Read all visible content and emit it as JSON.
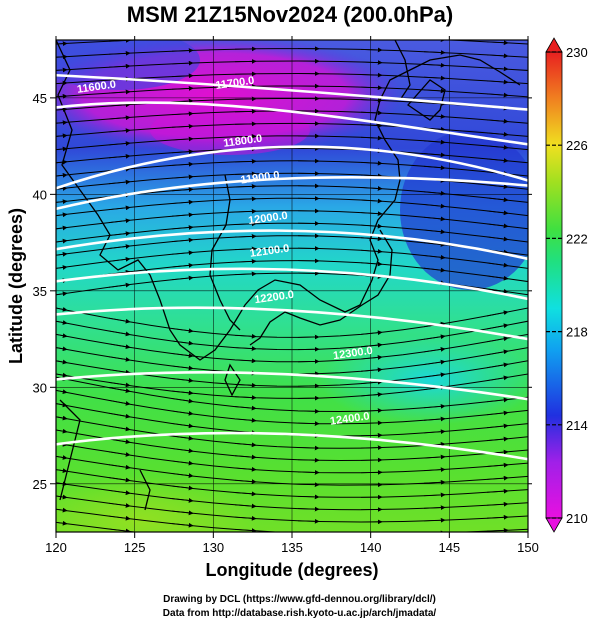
{
  "title": "MSM 21Z15Nov2024 (200.0hPa)",
  "credits": {
    "line1": "Drawing by DCL (https://www.gfd-dennou.org/library/dcl/)",
    "line2": "Data from http://database.rish.kyoto-u.ac.jp/arch/jmadata/"
  },
  "map": {
    "xlabel": "Longitude (degrees)",
    "ylabel": "Latitude  (degrees)",
    "xlim": [
      120,
      150
    ],
    "ylim": [
      22.5,
      48
    ],
    "xticks": [
      "120",
      "125",
      "130",
      "135",
      "140",
      "145",
      "150"
    ],
    "yticks": [
      "25",
      "30",
      "35",
      "40",
      "45"
    ],
    "contours": [
      {
        "label": "11600.0",
        "lon": 122.6,
        "lat": 45.4
      },
      {
        "label": "11700.0",
        "lon": 131.4,
        "lat": 45.6
      },
      {
        "label": "11800.0",
        "lon": 131.9,
        "lat": 42.6
      },
      {
        "label": "11900.0",
        "lon": 133.0,
        "lat": 40.7
      },
      {
        "label": "12000.0",
        "lon": 133.5,
        "lat": 38.6
      },
      {
        "label": "12100.0",
        "lon": 133.6,
        "lat": 36.9
      },
      {
        "label": "12200.0",
        "lon": 133.9,
        "lat": 34.5
      },
      {
        "label": "12300.0",
        "lon": 138.9,
        "lat": 31.6
      },
      {
        "label": "12400.0",
        "lon": 138.7,
        "lat": 28.2
      }
    ],
    "colors": {
      "magenta": "#e010d0",
      "blue": "#1a3ad8",
      "cyan": "#20d8d8",
      "green": "#40e040",
      "lime": "#9ae020"
    }
  },
  "colorbar": {
    "min": 210,
    "max": 230,
    "ticks": [
      "230",
      "226",
      "222",
      "218",
      "214",
      "210"
    ]
  }
}
